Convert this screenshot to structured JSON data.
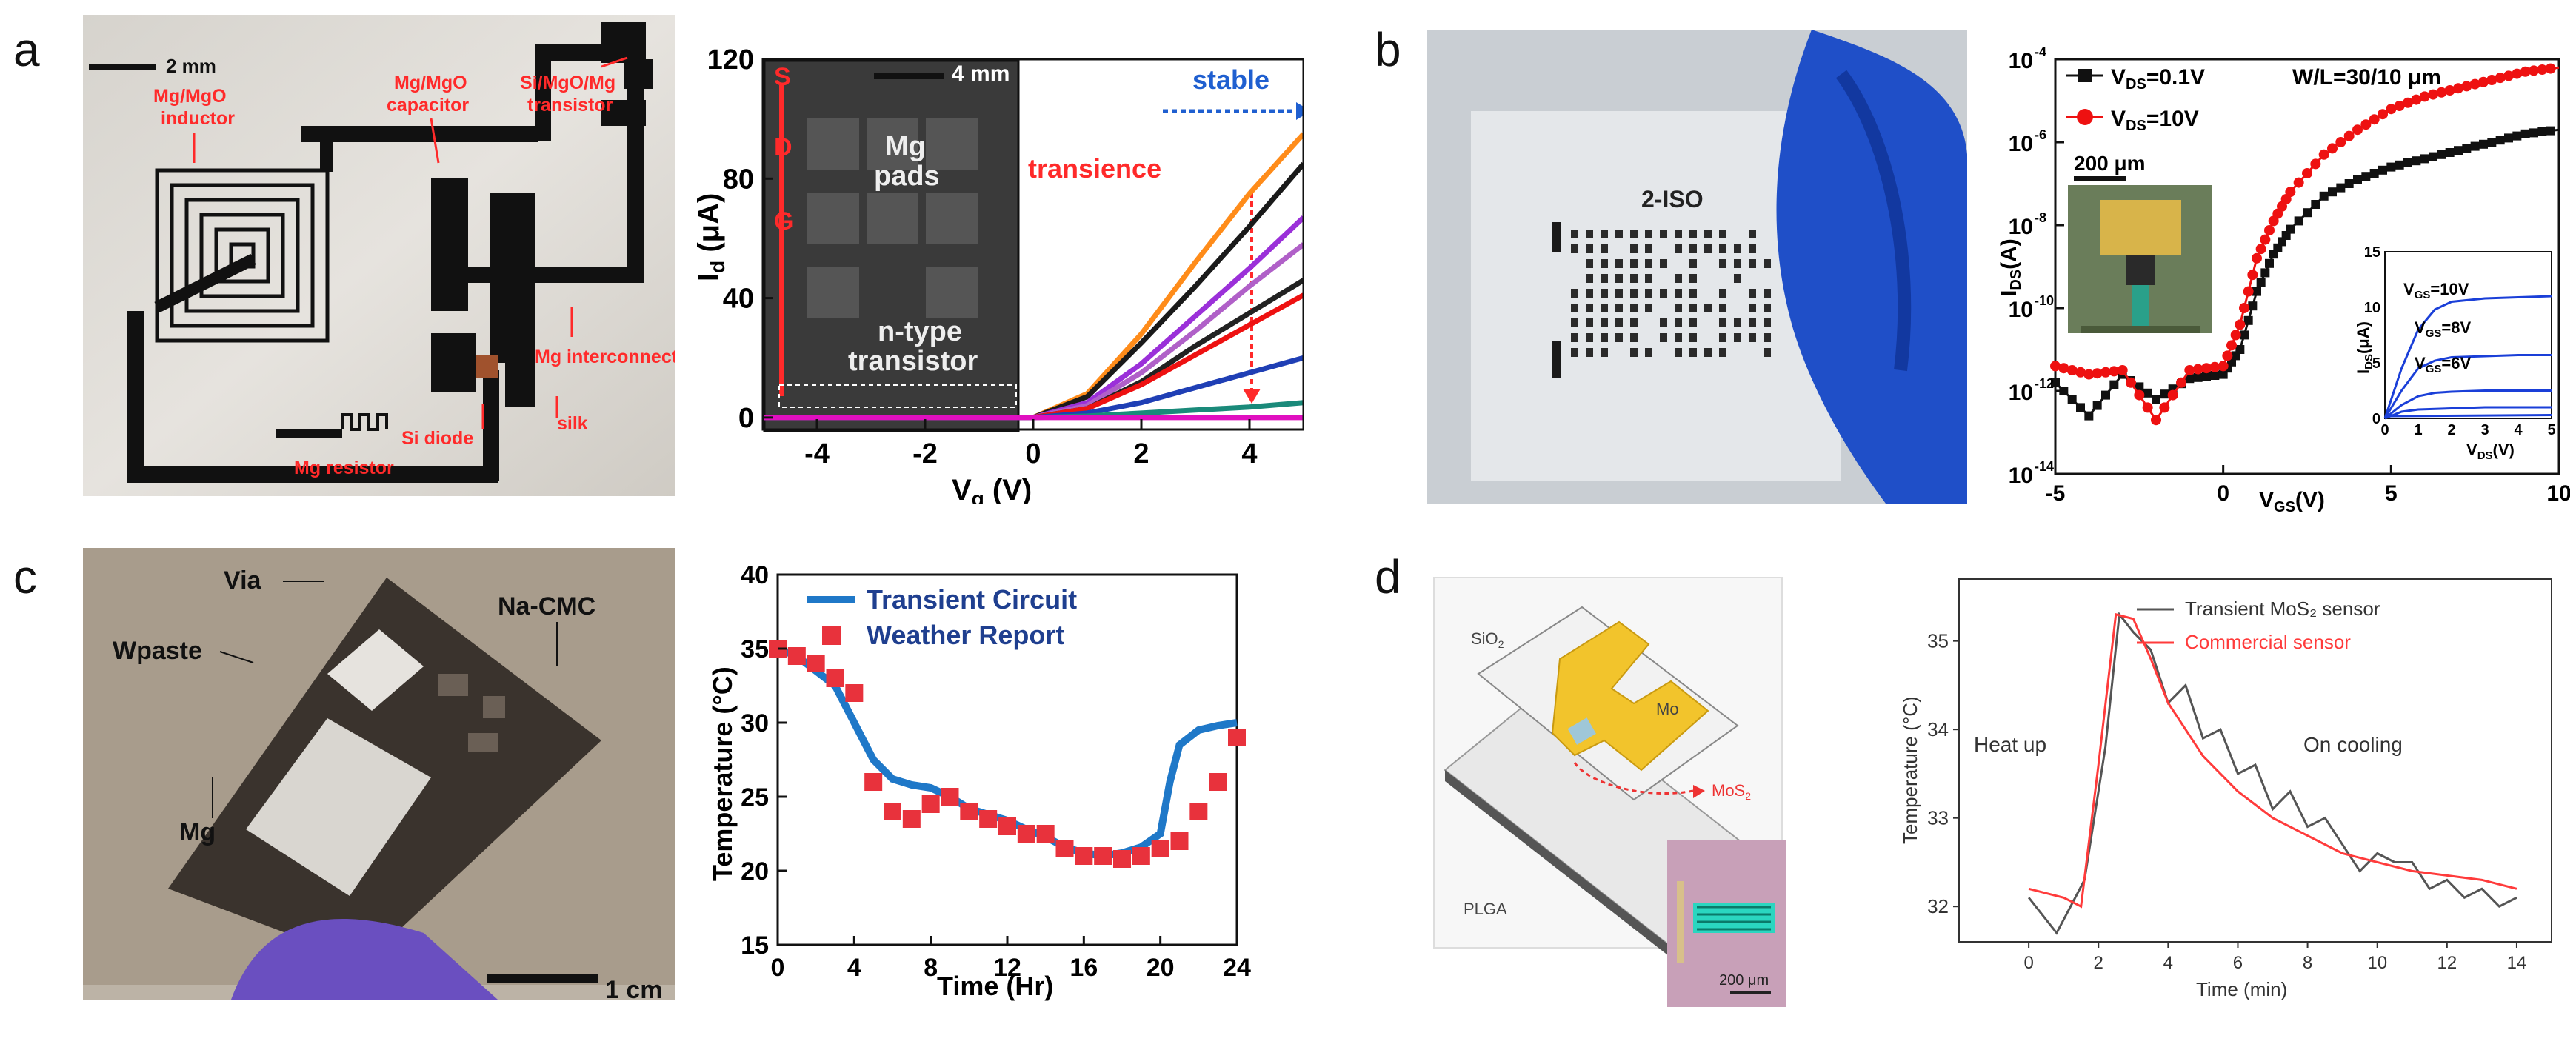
{
  "panels": {
    "a": {
      "letter": "a",
      "photo": {
        "scale_bar": "2 mm",
        "labels": {
          "inductor_1": "Mg/MgO",
          "inductor_2": "inductor",
          "capacitor_1": "Mg/MgO",
          "capacitor_2": "capacitor",
          "transistor_1": "Si/MgO/Mg",
          "transistor_2": "transistor",
          "interconnect": "Mg interconnect",
          "resistor": "Mg resistor",
          "diode": "Si diode",
          "silk": "silk"
        }
      },
      "chart": {
        "inset_scale": "4 mm",
        "S": "S",
        "D": "D",
        "G": "G",
        "pads_1": "Mg",
        "pads_2": "pads",
        "ntype_1": "n-type",
        "ntype_2": "transistor",
        "stable": "stable",
        "transience": "transience",
        "ylabel_main": "I",
        "ylabel_sub": "d",
        "ylabel_unit": " (μA)",
        "xlabel_main": "V",
        "xlabel_sub": "g",
        "xlabel_unit": " (V)",
        "xticks": [
          "-4",
          "-2",
          "0",
          "2",
          "4"
        ],
        "yticks": [
          "0",
          "40",
          "80",
          "120"
        ]
      }
    },
    "b": {
      "letter": "b",
      "photo": {
        "chip_label": "2-ISO"
      },
      "chart": {
        "legend_1": "V",
        "legend_1_sub": "DS",
        "legend_1_val": "=0.1V",
        "legend_2": "V",
        "legend_2_sub": "DS",
        "legend_2_val": "=10V",
        "wl": "W/L=30/10 μm",
        "inset_scale": "200 μm",
        "ylabel": "I",
        "ylabel_sub": "DS",
        "ylabel_unit": "(A)",
        "xlabel": "V",
        "xlabel_sub": "GS",
        "xlabel_unit": "(V)",
        "xticks": [
          "-5",
          "0",
          "5",
          "10"
        ],
        "yticks_base": [
          "10",
          "10",
          "10",
          "10",
          "10",
          "10"
        ],
        "yticks_exp": [
          "-4",
          "-6",
          "-8",
          "-10",
          "-12",
          "-14"
        ],
        "inset": {
          "ylabel": "I",
          "ylabel_sub": "DS",
          "ylabel_unit": "(μA)",
          "xlabel": "V",
          "xlabel_sub": "DS",
          "xlabel_unit": "(V)",
          "xticks": [
            "0",
            "1",
            "2",
            "3",
            "4",
            "5"
          ],
          "yticks": [
            "0",
            "5",
            "10",
            "15"
          ],
          "curve1": "V",
          "curve1_sub": "GS",
          "curve1_val": "=10V",
          "curve2": "V",
          "curve2_sub": "GS",
          "curve2_val": "=8V",
          "curve3": "V",
          "curve3_sub": "GS",
          "curve3_val": "=6V"
        }
      }
    },
    "c": {
      "letter": "c",
      "photo": {
        "via": "Via",
        "nacmc": "Na-CMC",
        "wpaste": "Wpaste",
        "mg": "Mg",
        "scale_bar": "1 cm"
      }
    },
    "d": {
      "letter": "d",
      "diagram": {
        "sio2": "SiO",
        "sio2_sub": "2",
        "mo": "Mo",
        "plga": "PLGA",
        "mos2": "MoS",
        "mos2_sub": "2",
        "inset_scale": "200 μm"
      }
    }
  },
  "chart_data": [
    {
      "id": "a-transfer",
      "type": "line",
      "xlabel": "Vg (V)",
      "ylabel": "Id (μA)",
      "xlim": [
        -5,
        5
      ],
      "ylim": [
        -4,
        120
      ],
      "series": [
        {
          "name": "orange",
          "color": "#ff8c1a",
          "x": [
            -5,
            0,
            1,
            2,
            3,
            4,
            5
          ],
          "y": [
            0,
            0,
            8,
            28,
            52,
            75,
            95
          ]
        },
        {
          "name": "black",
          "color": "#1a1a1a",
          "x": [
            -5,
            0,
            1,
            2,
            3,
            4,
            5
          ],
          "y": [
            0,
            0,
            7,
            25,
            44,
            64,
            85
          ]
        },
        {
          "name": "purple",
          "color": "#9b30d9",
          "x": [
            -5,
            0,
            1,
            2,
            3,
            4,
            5
          ],
          "y": [
            0,
            0,
            5,
            18,
            34,
            50,
            67
          ]
        },
        {
          "name": "violet",
          "color": "#b060c8",
          "x": [
            -5,
            0,
            1,
            2,
            3,
            4,
            5
          ],
          "y": [
            0,
            0,
            4,
            15,
            29,
            44,
            58
          ]
        },
        {
          "name": "dark",
          "color": "#222222",
          "x": [
            -5,
            0,
            1,
            2,
            3,
            4,
            5
          ],
          "y": [
            0,
            0,
            3,
            12,
            24,
            35,
            46
          ]
        },
        {
          "name": "red",
          "color": "#ee1111",
          "x": [
            -5,
            0,
            1,
            2,
            3,
            4,
            5
          ],
          "y": [
            0,
            0,
            3,
            11,
            21,
            31,
            41
          ]
        },
        {
          "name": "blue",
          "color": "#1f3fb5",
          "x": [
            -5,
            0,
            1,
            2,
            3,
            4,
            5
          ],
          "y": [
            0,
            0,
            1.5,
            5,
            10,
            15,
            20
          ]
        },
        {
          "name": "teal",
          "color": "#1a8a7a",
          "x": [
            -5,
            0,
            1,
            2,
            3,
            4,
            5
          ],
          "y": [
            0,
            0,
            0.5,
            1.5,
            2.5,
            3.5,
            5
          ]
        },
        {
          "name": "magenta",
          "color": "#e010c0",
          "x": [
            -5,
            0,
            1,
            2,
            3,
            4,
            5
          ],
          "y": [
            0,
            0,
            0,
            0,
            0,
            0,
            0
          ]
        }
      ]
    },
    {
      "id": "b-transfer",
      "type": "scatter",
      "xlabel": "VGS(V)",
      "ylabel": "IDS(A)",
      "yscale": "log",
      "xlim": [
        -5,
        10
      ],
      "ylim_exp": [
        -14,
        -4
      ],
      "series": [
        {
          "name": "VDS=0.1V",
          "color": "#111111",
          "x": [
            -5,
            -4,
            -3,
            -2,
            -1,
            0,
            0.5,
            1,
            1.5,
            2,
            3,
            4,
            5,
            6,
            7,
            8,
            9,
            10
          ],
          "logy": [
            -11.8,
            -12.6,
            -11.6,
            -12.2,
            -11.7,
            -11.6,
            -11.0,
            -9.6,
            -8.7,
            -8.1,
            -7.3,
            -6.9,
            -6.6,
            -6.4,
            -6.2,
            -6.0,
            -5.8,
            -5.7
          ]
        },
        {
          "name": "VDS=10V",
          "color": "#ee1111",
          "x": [
            -5,
            -4,
            -3,
            -2,
            -1,
            0,
            0.5,
            1,
            1.5,
            2,
            3,
            4,
            5,
            6,
            7,
            8,
            9,
            10
          ],
          "logy": [
            -11.4,
            -11.6,
            -11.5,
            -12.7,
            -11.5,
            -11.4,
            -10.4,
            -8.8,
            -7.9,
            -7.2,
            -6.3,
            -5.7,
            -5.2,
            -4.9,
            -4.7,
            -4.5,
            -4.3,
            -4.2
          ]
        }
      ]
    },
    {
      "id": "b-inset-output",
      "type": "line",
      "xlabel": "VDS(V)",
      "ylabel": "IDS(μA)",
      "xlim": [
        0,
        5
      ],
      "ylim": [
        0,
        15
      ],
      "series": [
        {
          "name": "VGS=10V",
          "x": [
            0,
            0.5,
            1,
            1.5,
            2,
            3,
            4,
            5
          ],
          "y": [
            0,
            4.5,
            8,
            9.8,
            10.5,
            10.8,
            10.9,
            11
          ]
        },
        {
          "name": "VGS=8V",
          "x": [
            0,
            0.5,
            1,
            1.5,
            2,
            3,
            4,
            5
          ],
          "y": [
            0,
            2.5,
            4.5,
            5.2,
            5.5,
            5.6,
            5.7,
            5.7
          ]
        },
        {
          "name": "VGS=6V",
          "x": [
            0,
            0.5,
            1,
            1.5,
            2,
            3,
            4,
            5
          ],
          "y": [
            0,
            1.2,
            2.0,
            2.3,
            2.4,
            2.5,
            2.5,
            2.5
          ]
        },
        {
          "name": "low1",
          "x": [
            0,
            0.5,
            1,
            2,
            3,
            4,
            5
          ],
          "y": [
            0,
            0.6,
            0.8,
            0.9,
            1.0,
            1.0,
            1.0
          ]
        },
        {
          "name": "low2",
          "x": [
            0,
            5
          ],
          "y": [
            0.2,
            0.3
          ]
        }
      ]
    },
    {
      "id": "c-temperature",
      "type": "line",
      "xlabel": "Time (Hr)",
      "ylabel": "Temperature (°C)",
      "xlim": [
        0,
        24
      ],
      "ylim": [
        15,
        40
      ],
      "xticks": [
        "0",
        "4",
        "8",
        "12",
        "16",
        "20",
        "24"
      ],
      "yticks": [
        "15",
        "20",
        "25",
        "30",
        "35",
        "40"
      ],
      "series": [
        {
          "name": "Transient Circuit",
          "color": "#1f78c8",
          "x": [
            0,
            1,
            2,
            3,
            4,
            5,
            6,
            7,
            8,
            9,
            10,
            11,
            12,
            13,
            14,
            15,
            16,
            17,
            18,
            19,
            20,
            20.5,
            21,
            22,
            23,
            24
          ],
          "y": [
            35,
            34.5,
            33.5,
            32.5,
            30,
            27.5,
            26.2,
            25.8,
            25.6,
            25.0,
            24.2,
            23.8,
            23.4,
            22.8,
            22.3,
            21.6,
            21.2,
            21.0,
            21.2,
            21.6,
            22.5,
            26,
            28.5,
            29.5,
            29.8,
            30
          ]
        },
        {
          "name": "Weather Report",
          "color": "#e8323c",
          "x": [
            0,
            1,
            2,
            3,
            4,
            5,
            6,
            7,
            8,
            9,
            10,
            11,
            12,
            13,
            14,
            15,
            16,
            17,
            18,
            19,
            20,
            21,
            22,
            23,
            24
          ],
          "y": [
            35,
            34.5,
            34,
            33,
            32,
            26,
            24,
            23.5,
            24.5,
            25,
            24,
            23.5,
            23,
            22.5,
            22.5,
            21.5,
            21,
            21,
            20.8,
            21,
            21.5,
            22,
            24,
            26,
            29
          ]
        }
      ]
    },
    {
      "id": "d-temperature",
      "type": "line",
      "xlabel": "Time (min)",
      "ylabel": "Temperature (°C)",
      "xlim": [
        -2,
        15
      ],
      "ylim": [
        31.6,
        35.7
      ],
      "xticks": [
        "0",
        "2",
        "4",
        "6",
        "8",
        "10",
        "12",
        "14"
      ],
      "yticks": [
        "32",
        "33",
        "34",
        "35"
      ],
      "legend": [
        "Transient MoS₂ sensor",
        "Commercial sensor"
      ],
      "annotations": [
        "Heat up",
        "On cooling"
      ],
      "series": [
        {
          "name": "Transient MoS2 sensor",
          "color": "#555555",
          "x": [
            0,
            0.8,
            1.6,
            2.2,
            2.6,
            3.0,
            3.5,
            4.0,
            4.5,
            5.0,
            5.5,
            6.0,
            6.5,
            7.0,
            7.5,
            8.0,
            8.5,
            9.0,
            9.5,
            10.0,
            10.5,
            11.0,
            11.5,
            12.0,
            12.5,
            13.0,
            13.5,
            14.0
          ],
          "y": [
            32.1,
            31.7,
            32.3,
            33.8,
            35.3,
            35.1,
            34.9,
            34.3,
            34.5,
            33.9,
            34.0,
            33.5,
            33.6,
            33.1,
            33.3,
            32.9,
            33.0,
            32.7,
            32.4,
            32.6,
            32.5,
            32.5,
            32.2,
            32.3,
            32.1,
            32.2,
            32.0,
            32.1
          ]
        },
        {
          "name": "Commercial sensor",
          "color": "#ff3b3b",
          "x": [
            0,
            0.5,
            1.0,
            1.5,
            2.0,
            2.5,
            3.0,
            3.5,
            4.0,
            5.0,
            6.0,
            7.0,
            8.0,
            9.0,
            10.0,
            11.0,
            12.0,
            13.0,
            14.0
          ],
          "y": [
            32.2,
            32.15,
            32.1,
            32.0,
            33.6,
            35.3,
            35.25,
            34.8,
            34.3,
            33.7,
            33.3,
            33.0,
            32.8,
            32.6,
            32.5,
            32.4,
            32.35,
            32.3,
            32.2
          ]
        }
      ]
    }
  ]
}
